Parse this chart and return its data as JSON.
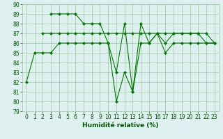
{
  "line1": {
    "x": [
      0,
      1,
      2,
      3,
      4,
      5,
      6,
      7,
      8,
      9,
      10,
      11,
      12,
      13,
      14,
      15,
      16,
      17,
      18,
      19,
      20,
      21,
      22,
      23
    ],
    "y": [
      82,
      85,
      85,
      85,
      86,
      86,
      86,
      86,
      86,
      86,
      86,
      80,
      83,
      81,
      86,
      86,
      87,
      85,
      86,
      86,
      86,
      86,
      86,
      86
    ]
  },
  "line2": {
    "x": [
      2,
      3,
      4,
      5,
      6,
      7,
      8,
      9,
      10,
      11,
      12,
      13,
      14,
      15,
      16,
      17,
      18,
      19,
      20,
      21,
      22,
      23
    ],
    "y": [
      87,
      87,
      87,
      87,
      87,
      87,
      87,
      87,
      87,
      87,
      87,
      87,
      87,
      87,
      87,
      87,
      87,
      87,
      87,
      87,
      87,
      86
    ]
  },
  "line3": {
    "x": [
      3,
      4,
      5,
      6,
      7,
      8,
      9,
      10,
      11,
      12,
      13,
      14,
      15,
      16,
      17,
      18,
      19,
      20,
      21,
      22,
      23
    ],
    "y": [
      89,
      89,
      89,
      89,
      88,
      88,
      88,
      86,
      83,
      88,
      81,
      88,
      86,
      87,
      86,
      87,
      87,
      87,
      87,
      86,
      86
    ]
  },
  "bg_color": "#dff0f0",
  "grid_color": "#99cc99",
  "line_color": "#007700",
  "xlabel": "Humidité relative (%)",
  "ylim": [
    79,
    90
  ],
  "xlim": [
    -0.5,
    23.5
  ],
  "yticks": [
    79,
    80,
    81,
    82,
    83,
    84,
    85,
    86,
    87,
    88,
    89,
    90
  ],
  "xticks": [
    0,
    1,
    2,
    3,
    4,
    5,
    6,
    7,
    8,
    9,
    10,
    11,
    12,
    13,
    14,
    15,
    16,
    17,
    18,
    19,
    20,
    21,
    22,
    23
  ]
}
